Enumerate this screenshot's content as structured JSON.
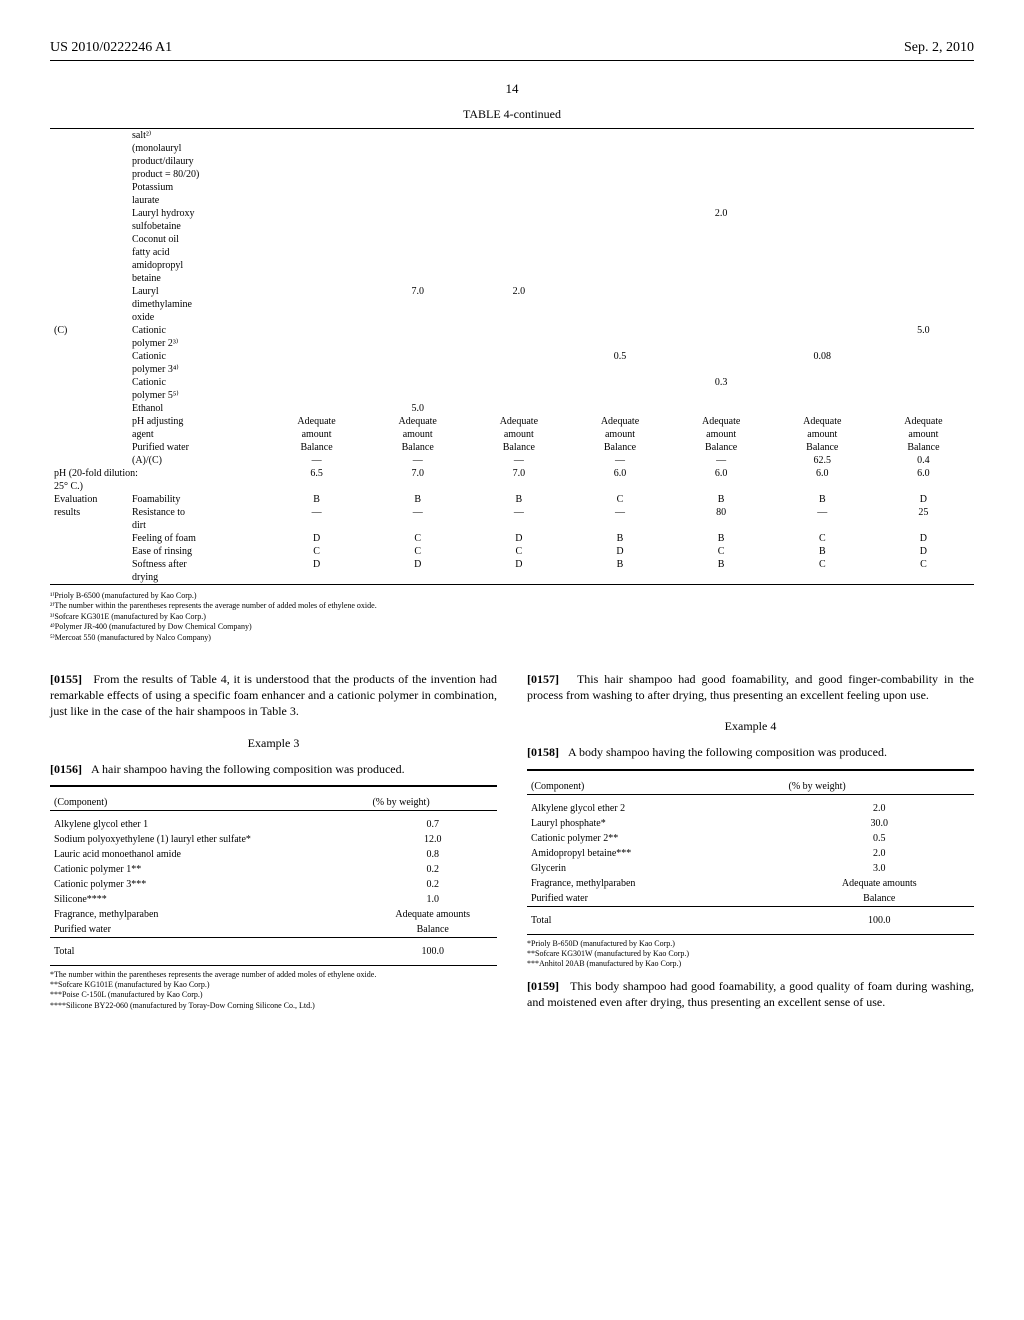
{
  "header": {
    "left": "US 2010/0222246 A1",
    "right": "Sep. 2, 2010"
  },
  "page_number": "14",
  "table4": {
    "title": "TABLE 4-continued",
    "rows": [
      {
        "group": "",
        "label": "salt²⁾",
        "v": [
          "",
          "",
          "",
          "",
          "",
          "",
          ""
        ]
      },
      {
        "group": "",
        "label": "(monolauryl",
        "v": [
          "",
          "",
          "",
          "",
          "",
          "",
          ""
        ]
      },
      {
        "group": "",
        "label": "product/dilaury",
        "v": [
          "",
          "",
          "",
          "",
          "",
          "",
          ""
        ]
      },
      {
        "group": "",
        "label": "product = 80/20)",
        "v": [
          "",
          "",
          "",
          "",
          "",
          "",
          ""
        ]
      },
      {
        "group": "",
        "label": "Potassium",
        "v": [
          "",
          "",
          "",
          "",
          "",
          "",
          ""
        ]
      },
      {
        "group": "",
        "label": "laurate",
        "v": [
          "",
          "",
          "",
          "",
          "",
          "",
          ""
        ]
      },
      {
        "group": "",
        "label": "Lauryl hydroxy",
        "v": [
          "",
          "",
          "",
          "",
          "2.0",
          "",
          ""
        ]
      },
      {
        "group": "",
        "label": "sulfobetaine",
        "v": [
          "",
          "",
          "",
          "",
          "",
          "",
          ""
        ]
      },
      {
        "group": "",
        "label": "Coconut oil",
        "v": [
          "",
          "",
          "",
          "",
          "",
          "",
          ""
        ]
      },
      {
        "group": "",
        "label": "fatty acid",
        "v": [
          "",
          "",
          "",
          "",
          "",
          "",
          ""
        ]
      },
      {
        "group": "",
        "label": "amidopropyl",
        "v": [
          "",
          "",
          "",
          "",
          "",
          "",
          ""
        ]
      },
      {
        "group": "",
        "label": "betaine",
        "v": [
          "",
          "",
          "",
          "",
          "",
          "",
          ""
        ]
      },
      {
        "group": "",
        "label": "Lauryl",
        "v": [
          "",
          "7.0",
          "2.0",
          "",
          "",
          "",
          ""
        ]
      },
      {
        "group": "",
        "label": "dimethylamine",
        "v": [
          "",
          "",
          "",
          "",
          "",
          "",
          ""
        ]
      },
      {
        "group": "",
        "label": "oxide",
        "v": [
          "",
          "",
          "",
          "",
          "",
          "",
          ""
        ]
      },
      {
        "group": "(C)",
        "label": "Cationic",
        "v": [
          "",
          "",
          "",
          "",
          "",
          "",
          "5.0"
        ]
      },
      {
        "group": "",
        "label": "polymer 2³⁾",
        "v": [
          "",
          "",
          "",
          "",
          "",
          "",
          ""
        ]
      },
      {
        "group": "",
        "label": "Cationic",
        "v": [
          "",
          "",
          "",
          "0.5",
          "",
          "0.08",
          ""
        ]
      },
      {
        "group": "",
        "label": "polymer 3⁴⁾",
        "v": [
          "",
          "",
          "",
          "",
          "",
          "",
          ""
        ]
      },
      {
        "group": "",
        "label": "Cationic",
        "v": [
          "",
          "",
          "",
          "",
          "0.3",
          "",
          ""
        ]
      },
      {
        "group": "",
        "label": "polymer 5⁵⁾",
        "v": [
          "",
          "",
          "",
          "",
          "",
          "",
          ""
        ]
      },
      {
        "group": "",
        "label": "Ethanol",
        "v": [
          "",
          "5.0",
          "",
          "",
          "",
          "",
          ""
        ]
      },
      {
        "group": "",
        "label": "pH adjusting",
        "v": [
          "Adequate",
          "Adequate",
          "Adequate",
          "Adequate",
          "Adequate",
          "Adequate",
          "Adequate"
        ]
      },
      {
        "group": "",
        "label": "agent",
        "v": [
          "amount",
          "amount",
          "amount",
          "amount",
          "amount",
          "amount",
          "amount"
        ]
      },
      {
        "group": "",
        "label": "Purified water",
        "v": [
          "Balance",
          "Balance",
          "Balance",
          "Balance",
          "Balance",
          "Balance",
          "Balance"
        ]
      },
      {
        "group": "",
        "label": "(A)/(C)",
        "v": [
          "—",
          "—",
          "—",
          "—",
          "—",
          "62.5",
          "0.4"
        ]
      },
      {
        "group": "",
        "label": "pH (20-fold dilution:",
        "v": [
          "6.5",
          "7.0",
          "7.0",
          "6.0",
          "6.0",
          "6.0",
          "6.0"
        ],
        "span": true
      },
      {
        "group": "",
        "label": "25° C.)",
        "v": [
          "",
          "",
          "",
          "",
          "",
          "",
          ""
        ],
        "span": true
      },
      {
        "group": "Evaluation",
        "label": "Foamability",
        "v": [
          "B",
          "B",
          "B",
          "C",
          "B",
          "B",
          "D"
        ]
      },
      {
        "group": "results",
        "label": "Resistance to",
        "v": [
          "—",
          "—",
          "—",
          "—",
          "80",
          "—",
          "25"
        ]
      },
      {
        "group": "",
        "label": "dirt",
        "v": [
          "",
          "",
          "",
          "",
          "",
          "",
          ""
        ]
      },
      {
        "group": "",
        "label": "Feeling of foam",
        "v": [
          "D",
          "C",
          "D",
          "B",
          "B",
          "C",
          "D"
        ]
      },
      {
        "group": "",
        "label": "Ease of rinsing",
        "v": [
          "C",
          "C",
          "C",
          "D",
          "C",
          "B",
          "D"
        ]
      },
      {
        "group": "",
        "label": "Softness after",
        "v": [
          "D",
          "D",
          "D",
          "B",
          "B",
          "C",
          "C"
        ]
      },
      {
        "group": "",
        "label": "drying",
        "v": [
          "",
          "",
          "",
          "",
          "",
          "",
          ""
        ]
      }
    ],
    "footnotes": [
      "¹⁾Prioly B-6500 (manufactured by Kao Corp.)",
      "²⁾The number within the parentheses represents the average number of added moles of ethylene oxide.",
      "³⁾Sofcare KG301E (manufactured by Kao Corp.)",
      "⁴⁾Polymer JR-400 (manufactured by Dow Chemical Company)",
      "⁵⁾Mercoat 550 (manufactured by Nalco Company)"
    ]
  },
  "left_col": {
    "para1_num": "[0155]",
    "para1": "From the results of Table 4, it is understood that the products of the invention had remarkable effects of using a specific foam enhancer and a cationic polymer in combination, just like in the case of the hair shampoos in Table 3.",
    "example3_title": "Example 3",
    "para2_num": "[0156]",
    "para2": "A hair shampoo having the following composition was produced.",
    "comp_table": {
      "head_left": "(Component)",
      "head_right": "(% by weight)",
      "rows": [
        {
          "c": "Alkylene glycol ether 1",
          "v": "0.7"
        },
        {
          "c": "Sodium polyoxyethylene (1) lauryl ether sulfate*",
          "v": "12.0"
        },
        {
          "c": "Lauric acid monoethanol amide",
          "v": "0.8"
        },
        {
          "c": "Cationic polymer 1**",
          "v": "0.2"
        },
        {
          "c": "Cationic polymer 3***",
          "v": "0.2"
        },
        {
          "c": "Silicone****",
          "v": "1.0"
        },
        {
          "c": "Fragrance, methylparaben",
          "v": "Adequate amounts"
        },
        {
          "c": "Purified water",
          "v": "Balance"
        }
      ],
      "total_label": "Total",
      "total_value": "100.0",
      "footnotes": [
        "*The number within the parentheses represents the average number of added moles of ethylene oxide.",
        "**Sofcare KG101E (manufactured by Kao Corp.)",
        "***Poise C-150L (manufactured by Kao Corp.)",
        "****Silicone BY22-060 (manufactured by Toray-Dow Corning Silicone Co., Ltd.)"
      ]
    }
  },
  "right_col": {
    "para1_num": "[0157]",
    "para1": "This hair shampoo had good foamability, and good finger-combability in the process from washing to after drying, thus presenting an excellent feeling upon use.",
    "example4_title": "Example 4",
    "para2_num": "[0158]",
    "para2": "A body shampoo having the following composition was produced.",
    "comp_table": {
      "head_left": "(Component)",
      "head_right": "(% by weight)",
      "rows": [
        {
          "c": "Alkylene glycol ether 2",
          "v": "2.0"
        },
        {
          "c": "Lauryl phosphate*",
          "v": "30.0"
        },
        {
          "c": "Cationic polymer 2**",
          "v": "0.5"
        },
        {
          "c": "Amidopropyl betaine***",
          "v": "2.0"
        },
        {
          "c": "Glycerin",
          "v": "3.0"
        },
        {
          "c": "Fragrance, methylparaben",
          "v": "Adequate amounts"
        },
        {
          "c": "Purified water",
          "v": "Balance"
        }
      ],
      "total_label": "Total",
      "total_value": "100.0",
      "footnotes": [
        "*Prioly B-650D (manufactured by Kao Corp.)",
        "**Sofcare KG301W (manufactured by Kao Corp.)",
        "***Anhitol 20AB (manufactured by Kao Corp.)"
      ]
    },
    "para3_num": "[0159]",
    "para3": "This body shampoo had good foamability, a good quality of foam during washing, and moistened even after drying, thus presenting an excellent sense of use."
  }
}
